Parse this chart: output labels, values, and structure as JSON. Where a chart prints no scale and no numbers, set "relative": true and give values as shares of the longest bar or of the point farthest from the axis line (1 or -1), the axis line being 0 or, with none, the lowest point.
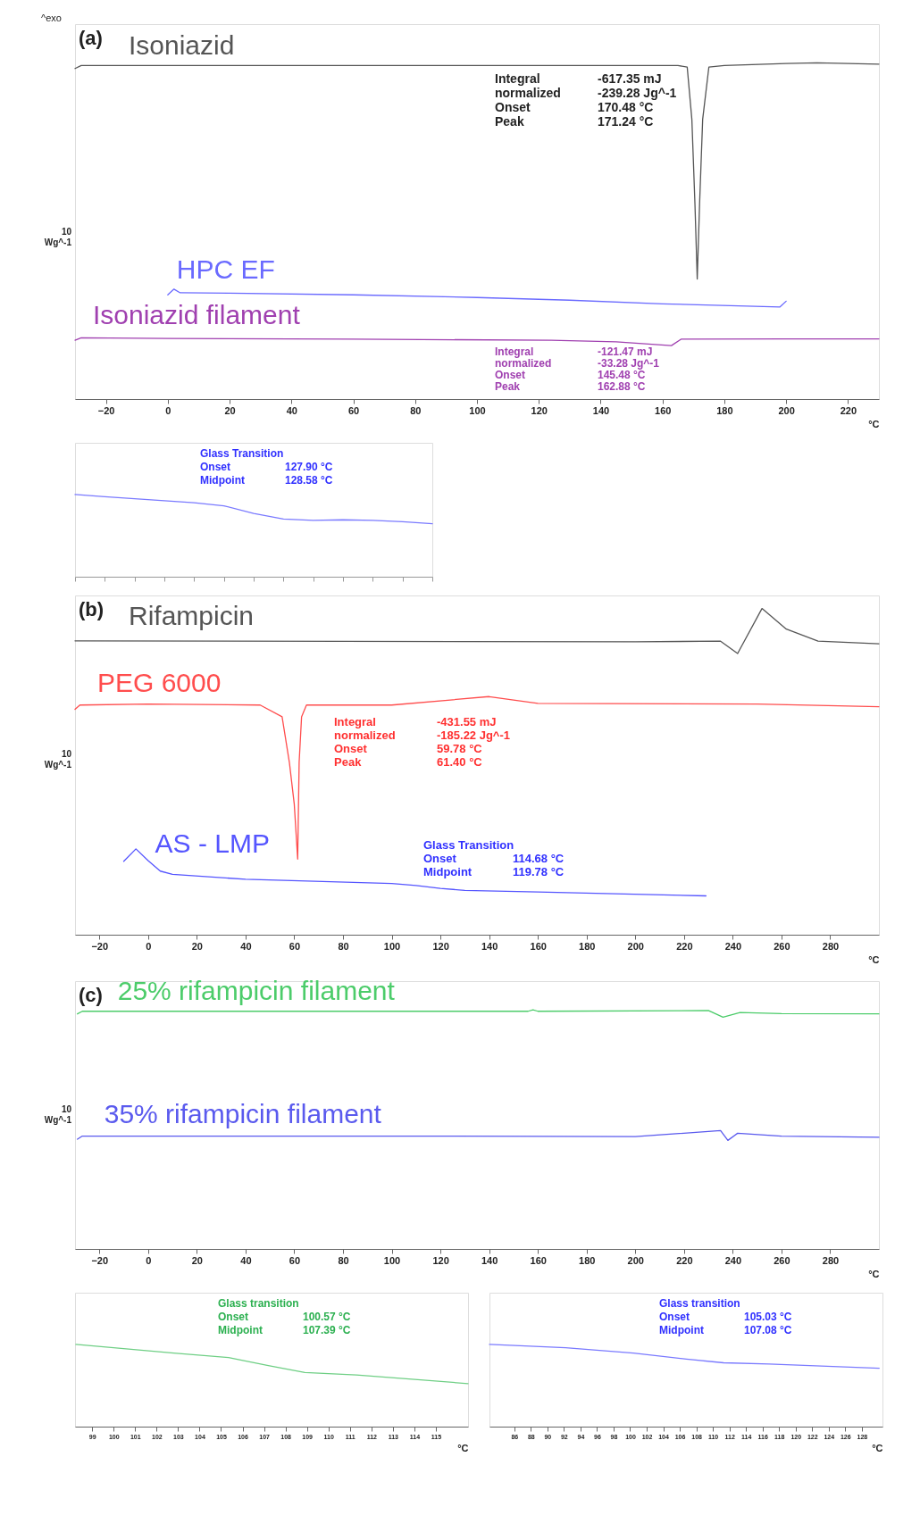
{
  "chart_data": [
    {
      "type": "line",
      "relative": true,
      "xlim": [
        -30,
        230
      ],
      "xticks": [
        -20,
        0,
        20,
        40,
        60,
        80,
        100,
        120,
        140,
        160,
        180,
        200,
        220
      ],
      "xlabel": "°C",
      "annotations": [
        "^exo",
        "(a)",
        "10",
        "Wg^-1",
        "Integral",
        "-617.35 mJ",
        "normalized",
        "-239.28 Jg^-1",
        "Onset",
        "170.48 °C",
        "Peak",
        "171.24 °C",
        "Integral",
        "-121.47 mJ",
        "normalized",
        "-33.28 Jg^-1",
        "Onset",
        "145.48 °C",
        "Peak",
        "162.88 °C"
      ],
      "series": [
        {
          "name": "Isoniazid",
          "color": "#555555",
          "x": [
            -30,
            -28,
            100,
            165,
            168,
            169.5,
            170.5,
            171.24,
            172,
            173,
            175,
            180,
            200,
            210,
            230
          ],
          "values": [
            0.983,
            0.992,
            0.992,
            0.992,
            0.987,
            0.832,
            0.58,
            0.357,
            0.58,
            0.832,
            0.987,
            0.992,
            0.998,
            1,
            0.996
          ]
        },
        {
          "name": "HPC EF",
          "color": "#6a6aff",
          "x": [
            0,
            2,
            4,
            20,
            60,
            100,
            130,
            160,
            198,
            200
          ],
          "values": [
            0.31,
            0.327,
            0.316,
            0.315,
            0.31,
            0.302,
            0.294,
            0.283,
            0.274,
            0.291
          ]
        },
        {
          "name": "Isoniazid filament",
          "color": "#a040b0",
          "x": [
            -30,
            -28,
            0,
            60,
            124,
            145,
            162.88,
            166,
            200,
            230
          ],
          "values": [
            0.175,
            0.182,
            0.18,
            0.178,
            0.175,
            0.17,
            0.159,
            0.178,
            0.179,
            0.179
          ]
        }
      ]
    },
    {
      "type": "line",
      "relative": true,
      "tick_labels": false,
      "categories": [
        null,
        null,
        null,
        null,
        null,
        null,
        null,
        null,
        null,
        null,
        null,
        null,
        null
      ],
      "annotations": [
        "Glass Transition",
        "Onset",
        "127.90 °C",
        "Midpoint",
        "128.58 °C"
      ],
      "series": [
        {
          "color": "#7a7aff",
          "values": [
            1,
            0.975,
            0.949,
            0.926,
            0.901,
            0.863,
            0.771,
            0.703,
            0.685,
            0.693,
            0.685,
            0.67,
            0.645
          ]
        }
      ]
    },
    {
      "type": "line",
      "relative": true,
      "xlim": [
        -30,
        300
      ],
      "xticks": [
        -20,
        0,
        20,
        40,
        60,
        80,
        100,
        120,
        140,
        160,
        180,
        200,
        220,
        240,
        260,
        280
      ],
      "xlabel": "°C",
      "annotations": [
        "(b)",
        "10",
        "Wg^-1",
        "Integral",
        "-431.55 mJ",
        "normalized",
        "-185.22 Jg^-1",
        "Onset",
        "59.78 °C",
        "Peak",
        "61.40 °C",
        "Glass Transition",
        "Onset",
        "114.68 °C",
        "Midpoint",
        "119.78 °C"
      ],
      "series": [
        {
          "name": "Rifampicin",
          "color": "#555555",
          "x": [
            -30,
            200,
            235,
            242,
            252,
            262,
            275,
            300
          ],
          "values": [
            0.901,
            0.898,
            0.9,
            0.862,
            1,
            0.937,
            0.9,
            0.892
          ]
        },
        {
          "name": "PEG 6000",
          "color": "#ff4d4d",
          "x": [
            -30,
            -28,
            0,
            46,
            55,
            58,
            60,
            61.4,
            62,
            63,
            65,
            100,
            140,
            160,
            250,
            300
          ],
          "values": [
            0.691,
            0.704,
            0.707,
            0.704,
            0.668,
            0.528,
            0.4,
            0.232,
            0.528,
            0.668,
            0.704,
            0.704,
            0.73,
            0.709,
            0.707,
            0.699
          ]
        },
        {
          "name": "AS - LMP",
          "color": "#5555ff",
          "x": [
            -10,
            -5,
            0,
            5,
            10,
            40,
            100,
            110,
            120,
            130,
            160,
            229
          ],
          "values": [
            0.225,
            0.263,
            0.227,
            0.195,
            0.185,
            0.17,
            0.157,
            0.151,
            0.142,
            0.136,
            0.131,
            0.119
          ]
        }
      ]
    },
    {
      "type": "line",
      "relative": true,
      "xlim": [
        -30,
        300
      ],
      "xticks": [
        -20,
        0,
        20,
        40,
        60,
        80,
        100,
        120,
        140,
        160,
        180,
        200,
        220,
        240,
        260,
        280
      ],
      "xlabel": "°C",
      "annotations": [
        "(c)",
        "10",
        "Wg^-1"
      ],
      "series": [
        {
          "name": "25% rifampicin filament",
          "color": "#4ccc6a",
          "x": [
            -29,
            -27,
            156,
            158,
            160,
            230,
            236,
            243,
            260,
            300
          ],
          "values": [
            0.983,
            0.994,
            0.994,
            1,
            0.994,
            0.997,
            0.969,
            0.989,
            0.984,
            0.983
          ]
        },
        {
          "name": "35% rifampicin filament",
          "color": "#5a5aee",
          "x": [
            -29,
            -27,
            100,
            200,
            235,
            238,
            242,
            260,
            300
          ],
          "values": [
            0.459,
            0.472,
            0.472,
            0.47,
            0.495,
            0.454,
            0.484,
            0.472,
            0.467
          ]
        }
      ]
    },
    {
      "type": "line",
      "relative": true,
      "xlim": [
        98.2,
        116.5
      ],
      "xticks": [
        99,
        100,
        101,
        102,
        103,
        104,
        105,
        106,
        107,
        108,
        109,
        110,
        111,
        112,
        113,
        114,
        115
      ],
      "xlabel": "°C",
      "annotations": [
        "Glass transition",
        "Onset",
        "100.57 °C",
        "Midpoint",
        "107.39 °C"
      ],
      "series": [
        {
          "color": "#6fcf85",
          "x": [
            98.24,
            102.8,
            105.35,
            107.2,
            108.9,
            111.3,
            116.5
          ],
          "values": [
            1,
            0.896,
            0.841,
            0.742,
            0.658,
            0.63,
            0.524
          ]
        }
      ]
    },
    {
      "type": "line",
      "relative": true,
      "xlim": [
        83,
        130.5
      ],
      "xticks": [
        86,
        88,
        90,
        92,
        94,
        96,
        98,
        100,
        102,
        104,
        106,
        108,
        110,
        112,
        114,
        116,
        118,
        120,
        122,
        124,
        126,
        128
      ],
      "xlabel": "°C",
      "annotations": [
        "Glass transition",
        "Onset",
        "105.03 °C",
        "Midpoint",
        "107.08 °C"
      ],
      "series": [
        {
          "color": "#7a7aff",
          "x": [
            83.0,
            92.2,
            100.4,
            106.8,
            111.3,
            116.8,
            130.1
          ],
          "values": [
            1,
            0.96,
            0.896,
            0.821,
            0.777,
            0.763,
            0.711
          ]
        }
      ]
    }
  ]
}
